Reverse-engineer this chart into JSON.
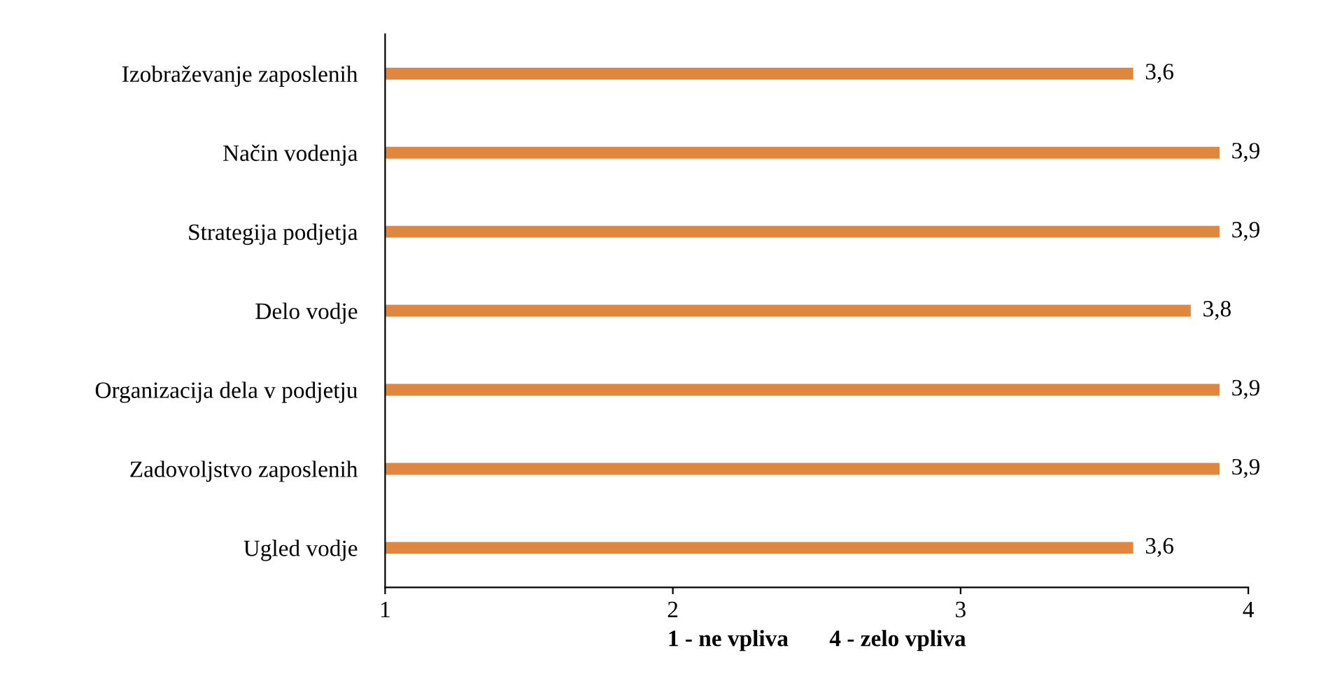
{
  "chart_data": {
    "type": "bar",
    "orientation": "horizontal",
    "categories": [
      "Izobraževanje zaposlenih",
      "Način vodenja",
      "Strategija podjetja",
      "Delo vodje",
      "Organizacija dela v podjetju",
      "Zadovoljstvo zaposlenih",
      "Ugled vodje"
    ],
    "values": [
      3.6,
      3.9,
      3.9,
      3.8,
      3.9,
      3.9,
      3.6
    ],
    "value_labels": [
      "3,6",
      "3,9",
      "3,9",
      "3,8",
      "3,9",
      "3,9",
      "3,6"
    ],
    "color": "#e0873f",
    "xlim": [
      1,
      4
    ],
    "xticks": [
      1,
      2,
      3,
      4
    ],
    "xlabel": "1 - ne vpliva       4 - zelo vpliva",
    "grid": false,
    "legend": false
  }
}
